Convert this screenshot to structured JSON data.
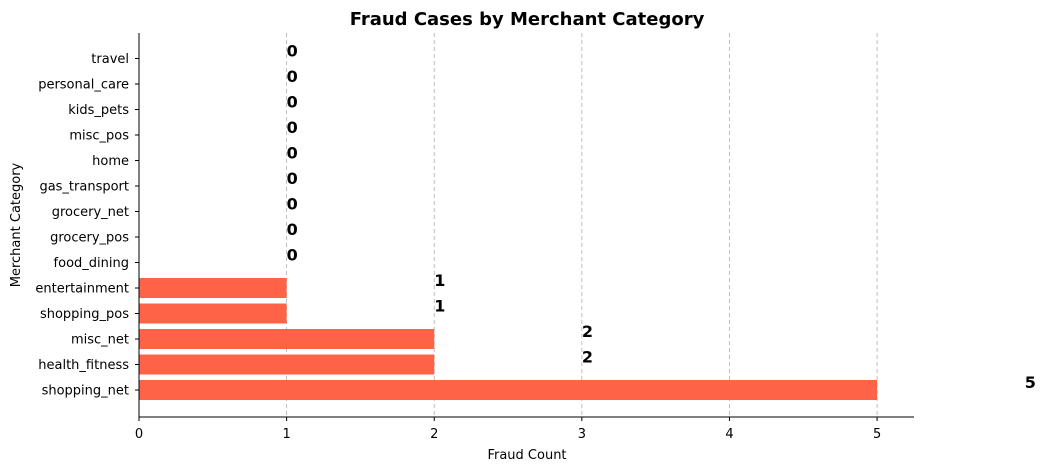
{
  "chart_data": {
    "type": "bar",
    "orientation": "horizontal",
    "title": "Fraud Cases by Merchant Category",
    "xlabel": "Fraud Count",
    "ylabel": "Merchant Category",
    "categories": [
      "shopping_net",
      "health_fitness",
      "misc_net",
      "shopping_pos",
      "entertainment",
      "food_dining",
      "grocery_pos",
      "grocery_net",
      "gas_transport",
      "home",
      "misc_pos",
      "kids_pets",
      "personal_care",
      "travel"
    ],
    "values": [
      5,
      2,
      2,
      1,
      1,
      0,
      0,
      0,
      0,
      0,
      0,
      0,
      0,
      0
    ],
    "data_labels": [
      "5",
      "2",
      "2",
      "1",
      "1",
      "0",
      "0",
      "0",
      "0",
      "0",
      "0",
      "0",
      "0",
      "0"
    ],
    "xlim": [
      0,
      5.25
    ],
    "xticks": [
      "0",
      "1",
      "2",
      "3",
      "4",
      "5"
    ],
    "grid": "x-dashed",
    "bar_color": "#ff6347"
  }
}
